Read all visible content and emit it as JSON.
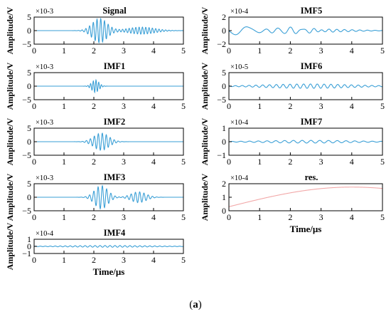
{
  "figure_caption": {
    "open": "(",
    "letter": "a",
    "close": ")"
  },
  "colors": {
    "signal": "#3a9fd6",
    "residual": "#f2a7a7",
    "axis": "#000000"
  },
  "chart_data": [
    {
      "type": "line",
      "title": "Signal",
      "ylabel": "Amplitude/V",
      "xlabel": "",
      "exponent_label": "×10-3",
      "xlim": [
        0,
        5
      ],
      "ylim": [
        -5,
        5
      ],
      "yticks": [
        5,
        0,
        -5
      ],
      "xticks": [
        0,
        1,
        2,
        3,
        4,
        5
      ],
      "series": [
        {
          "color": "#3a9fd6",
          "components": [
            {
              "t0": 2.2,
              "sigma": 0.25,
              "freq": 8,
              "amp": 4.5
            },
            {
              "t0": 3.6,
              "sigma": 0.45,
              "freq": 9,
              "amp": 1.3
            }
          ]
        }
      ]
    },
    {
      "type": "line",
      "title": "IMF1",
      "ylabel": "Amplitude/V",
      "xlabel": "",
      "exponent_label": "×10-3",
      "xlim": [
        0,
        5
      ],
      "ylim": [
        -5,
        5
      ],
      "yticks": [
        5,
        0,
        -5
      ],
      "xticks": [
        0,
        1,
        2,
        3,
        4,
        5
      ],
      "series": [
        {
          "color": "#3a9fd6",
          "components": [
            {
              "t0": 2.05,
              "sigma": 0.12,
              "freq": 11,
              "amp": 2.3
            }
          ]
        }
      ]
    },
    {
      "type": "line",
      "title": "IMF2",
      "ylabel": "Amplitude/V",
      "xlabel": "",
      "exponent_label": "×10-3",
      "xlim": [
        0,
        5
      ],
      "ylim": [
        -5,
        5
      ],
      "yticks": [
        5,
        0,
        -5
      ],
      "xticks": [
        0,
        1,
        2,
        3,
        4,
        5
      ],
      "series": [
        {
          "color": "#3a9fd6",
          "components": [
            {
              "t0": 2.25,
              "sigma": 0.25,
              "freq": 7.5,
              "amp": 3.2
            }
          ]
        }
      ]
    },
    {
      "type": "line",
      "title": "IMF3",
      "ylabel": "Amplitude/V",
      "xlabel": "",
      "exponent_label": "×10-3",
      "xlim": [
        0,
        5
      ],
      "ylim": [
        -5,
        5
      ],
      "yticks": [
        5,
        0,
        -5
      ],
      "xticks": [
        0,
        1,
        2,
        3,
        4,
        5
      ],
      "series": [
        {
          "color": "#3a9fd6",
          "components": [
            {
              "t0": 2.25,
              "sigma": 0.22,
              "freq": 7,
              "amp": 4.3
            },
            {
              "t0": 3.5,
              "sigma": 0.25,
              "freq": 7,
              "amp": 2.0
            }
          ]
        }
      ]
    },
    {
      "type": "line",
      "title": "IMF4",
      "ylabel": "Amplitude/V",
      "xlabel": "Time/μs",
      "exponent_label": "×10-4",
      "xlim": [
        0,
        5
      ],
      "ylim": [
        -1,
        1
      ],
      "yticks": [
        1,
        0,
        -1
      ],
      "xticks": [
        0,
        1,
        2,
        3,
        4,
        5
      ],
      "series": [
        {
          "color": "#3a9fd6",
          "components": [
            {
              "t0": 2.5,
              "sigma": 1.4,
              "freq": 6,
              "amp": 0.12
            }
          ]
        }
      ]
    },
    {
      "type": "line",
      "title": "IMF5",
      "ylabel": "Amplitude/V",
      "xlabel": "",
      "exponent_label": "×10-4",
      "xlim": [
        0,
        5
      ],
      "ylim": [
        -2,
        2
      ],
      "yticks": [
        2,
        0,
        -2
      ],
      "xticks": [
        0,
        1,
        2,
        3,
        4,
        5
      ],
      "series": [
        {
          "color": "#3a9fd6",
          "components": [
            {
              "t0": 0.4,
              "sigma": 0.35,
              "freq": 1.2,
              "amp": 0.7
            },
            {
              "t0": 1.9,
              "sigma": 0.6,
              "freq": 2.5,
              "amp": 0.45
            },
            {
              "t0": 3.2,
              "sigma": 0.9,
              "freq": 4,
              "amp": 0.2
            }
          ]
        }
      ]
    },
    {
      "type": "line",
      "title": "IMF6",
      "ylabel": "Amplitude/V",
      "xlabel": "",
      "exponent_label": "×10-5",
      "xlim": [
        0,
        5
      ],
      "ylim": [
        -5,
        5
      ],
      "yticks": [
        5,
        0,
        -5
      ],
      "xticks": [
        0,
        1,
        2,
        3,
        4,
        5
      ],
      "series": [
        {
          "color": "#3a9fd6",
          "components": [
            {
              "t0": 2.6,
              "sigma": 1.4,
              "freq": 4.5,
              "amp": 0.8
            }
          ]
        }
      ]
    },
    {
      "type": "line",
      "title": "IMF7",
      "ylabel": "Amplitude/V",
      "xlabel": "",
      "exponent_label": "×10-4",
      "xlim": [
        0,
        5
      ],
      "ylim": [
        -1,
        1
      ],
      "yticks": [
        1,
        0,
        -1
      ],
      "xticks": [
        0,
        1,
        2,
        3,
        4,
        5
      ],
      "series": [
        {
          "color": "#3a9fd6",
          "components": [
            {
              "t0": 2.6,
              "sigma": 1.5,
              "freq": 3.5,
              "amp": 0.1
            }
          ]
        }
      ]
    },
    {
      "type": "line",
      "title": "res.",
      "ylabel": "Amplitude/V",
      "xlabel": "Time/μs",
      "exponent_label": "×10-4",
      "xlim": [
        0,
        5
      ],
      "ylim": [
        0,
        2
      ],
      "yticks": [
        2,
        1,
        0
      ],
      "xticks": [
        0,
        1,
        2,
        3,
        4,
        5
      ],
      "series": [
        {
          "color": "#f2a7a7",
          "trend": {
            "start": 0.3,
            "peak": 1.75,
            "peak_t": 4.0,
            "end": 1.65
          }
        }
      ]
    }
  ]
}
